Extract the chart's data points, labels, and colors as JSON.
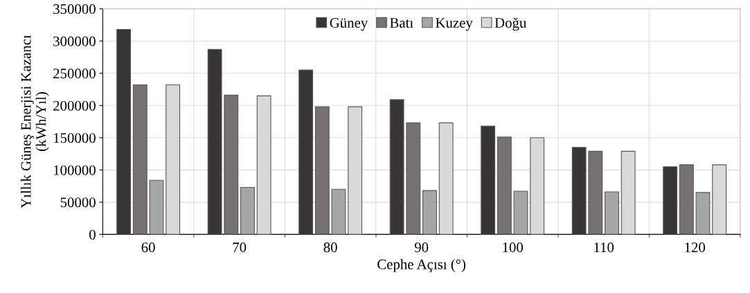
{
  "chart_data": {
    "type": "bar",
    "xlabel": "Cephe Açısı (°)",
    "ylabel": "Yıllık Güneş Enerjisi Kazancı\n(kWh/Yıl)",
    "categories": [
      "60",
      "70",
      "80",
      "90",
      "100",
      "110",
      "120"
    ],
    "series": [
      {
        "name": "Güney",
        "color": "#383536",
        "values": [
          318000,
          287000,
          255000,
          209000,
          168000,
          135000,
          105000
        ]
      },
      {
        "name": "Batı",
        "color": "#767172",
        "values": [
          232000,
          216000,
          198000,
          173000,
          151000,
          129000,
          108000
        ]
      },
      {
        "name": "Kuzey",
        "color": "#a6a6a6",
        "values": [
          84000,
          73000,
          70000,
          68000,
          67000,
          66000,
          65000
        ]
      },
      {
        "name": "Doğu",
        "color": "#d9d9d9",
        "values": [
          232000,
          215000,
          198000,
          173000,
          150000,
          129000,
          108000
        ]
      }
    ],
    "ylim": [
      0,
      350000
    ],
    "yticks": [
      0,
      50000,
      100000,
      150000,
      200000,
      250000,
      300000,
      350000
    ],
    "grid": true,
    "legend": "top"
  }
}
